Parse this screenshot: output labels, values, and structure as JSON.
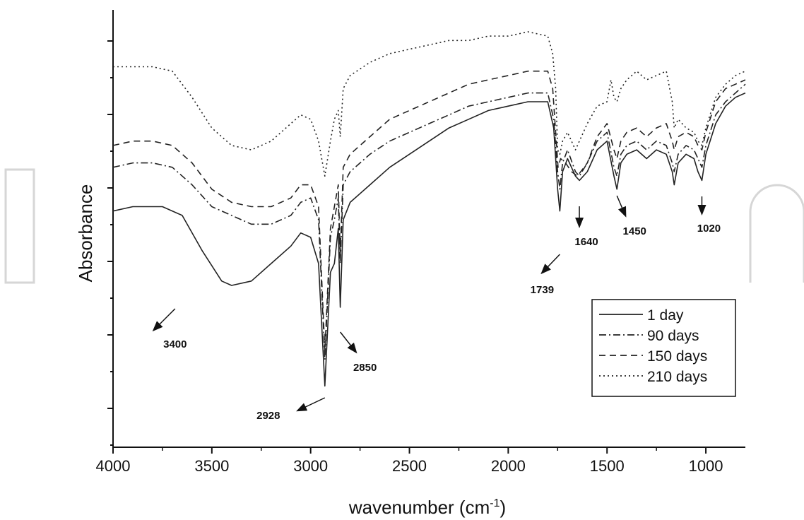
{
  "chart_data": {
    "type": "line",
    "title": "",
    "xlabel": "wavenumber (cm-1)",
    "xlabel_main": "wavenumber (cm",
    "xlabel_sup": "-1",
    "xlabel_close": ")",
    "ylabel": "Absorbance",
    "xlim": [
      4000,
      800
    ],
    "x_reversed": true,
    "ylim": [
      0,
      100
    ],
    "y_tick_labels_shown": false,
    "x_ticks": [
      4000,
      3500,
      3000,
      2500,
      2000,
      1500,
      1000
    ],
    "x_tick_labels": [
      "4000",
      "3500",
      "3000",
      "2500",
      "2000",
      "1500",
      "1000"
    ],
    "grid": false,
    "legend_position": "bottom-right",
    "series": [
      {
        "name": "1 day",
        "dash": "solid",
        "points": [
          [
            4000,
            54
          ],
          [
            3900,
            55
          ],
          [
            3750,
            55
          ],
          [
            3650,
            53
          ],
          [
            3550,
            45
          ],
          [
            3450,
            38
          ],
          [
            3400,
            37
          ],
          [
            3300,
            38
          ],
          [
            3200,
            42
          ],
          [
            3100,
            46
          ],
          [
            3050,
            49
          ],
          [
            3000,
            48
          ],
          [
            2960,
            42
          ],
          [
            2928,
            14
          ],
          [
            2900,
            40
          ],
          [
            2880,
            42
          ],
          [
            2860,
            50
          ],
          [
            2850,
            32
          ],
          [
            2835,
            52
          ],
          [
            2800,
            56
          ],
          [
            2700,
            60
          ],
          [
            2600,
            64
          ],
          [
            2500,
            67
          ],
          [
            2400,
            70
          ],
          [
            2300,
            73
          ],
          [
            2200,
            75
          ],
          [
            2100,
            77
          ],
          [
            2000,
            78
          ],
          [
            1900,
            79
          ],
          [
            1800,
            79
          ],
          [
            1770,
            73
          ],
          [
            1750,
            59
          ],
          [
            1739,
            54
          ],
          [
            1725,
            63
          ],
          [
            1700,
            66
          ],
          [
            1660,
            62
          ],
          [
            1640,
            61
          ],
          [
            1600,
            63
          ],
          [
            1550,
            68
          ],
          [
            1500,
            70
          ],
          [
            1465,
            62
          ],
          [
            1450,
            59
          ],
          [
            1430,
            65
          ],
          [
            1400,
            67
          ],
          [
            1350,
            68
          ],
          [
            1300,
            66
          ],
          [
            1250,
            68
          ],
          [
            1200,
            67
          ],
          [
            1170,
            63
          ],
          [
            1160,
            60
          ],
          [
            1140,
            65
          ],
          [
            1100,
            67
          ],
          [
            1060,
            66
          ],
          [
            1040,
            63
          ],
          [
            1020,
            61
          ],
          [
            1000,
            67
          ],
          [
            950,
            74
          ],
          [
            900,
            78
          ],
          [
            850,
            80
          ],
          [
            800,
            81
          ]
        ]
      },
      {
        "name": "90 days",
        "dash": "dash-dot",
        "points": [
          [
            4000,
            64
          ],
          [
            3900,
            65
          ],
          [
            3800,
            65
          ],
          [
            3700,
            64
          ],
          [
            3600,
            60
          ],
          [
            3500,
            55
          ],
          [
            3400,
            53
          ],
          [
            3300,
            51
          ],
          [
            3200,
            51
          ],
          [
            3100,
            53
          ],
          [
            3050,
            56
          ],
          [
            3000,
            57
          ],
          [
            2960,
            52
          ],
          [
            2928,
            20
          ],
          [
            2900,
            48
          ],
          [
            2880,
            52
          ],
          [
            2860,
            57
          ],
          [
            2850,
            42
          ],
          [
            2835,
            60
          ],
          [
            2800,
            63
          ],
          [
            2700,
            67
          ],
          [
            2600,
            70
          ],
          [
            2500,
            72
          ],
          [
            2400,
            74
          ],
          [
            2300,
            76
          ],
          [
            2200,
            78
          ],
          [
            2100,
            79
          ],
          [
            2000,
            80
          ],
          [
            1900,
            81
          ],
          [
            1800,
            81
          ],
          [
            1770,
            75
          ],
          [
            1750,
            63
          ],
          [
            1739,
            59
          ],
          [
            1725,
            65
          ],
          [
            1700,
            68
          ],
          [
            1660,
            63
          ],
          [
            1640,
            62
          ],
          [
            1600,
            65
          ],
          [
            1550,
            70
          ],
          [
            1500,
            72
          ],
          [
            1465,
            64
          ],
          [
            1450,
            62
          ],
          [
            1430,
            67
          ],
          [
            1400,
            69
          ],
          [
            1350,
            70
          ],
          [
            1300,
            68
          ],
          [
            1250,
            70
          ],
          [
            1200,
            69
          ],
          [
            1170,
            65
          ],
          [
            1160,
            63
          ],
          [
            1140,
            67
          ],
          [
            1100,
            69
          ],
          [
            1060,
            68
          ],
          [
            1040,
            66
          ],
          [
            1020,
            64
          ],
          [
            1000,
            69
          ],
          [
            950,
            76
          ],
          [
            900,
            79
          ],
          [
            850,
            81
          ],
          [
            800,
            83
          ]
        ]
      },
      {
        "name": "150 days",
        "dash": "dashed",
        "points": [
          [
            4000,
            69
          ],
          [
            3900,
            70
          ],
          [
            3800,
            70
          ],
          [
            3700,
            69
          ],
          [
            3600,
            65
          ],
          [
            3500,
            59
          ],
          [
            3400,
            56
          ],
          [
            3300,
            55
          ],
          [
            3200,
            55
          ],
          [
            3100,
            57
          ],
          [
            3050,
            60
          ],
          [
            3000,
            60
          ],
          [
            2960,
            55
          ],
          [
            2928,
            22
          ],
          [
            2900,
            50
          ],
          [
            2880,
            55
          ],
          [
            2860,
            60
          ],
          [
            2850,
            44
          ],
          [
            2835,
            64
          ],
          [
            2800,
            67
          ],
          [
            2700,
            71
          ],
          [
            2600,
            75
          ],
          [
            2500,
            77
          ],
          [
            2400,
            79
          ],
          [
            2300,
            81
          ],
          [
            2200,
            83
          ],
          [
            2100,
            84
          ],
          [
            2000,
            85
          ],
          [
            1900,
            86
          ],
          [
            1800,
            86
          ],
          [
            1775,
            82
          ],
          [
            1760,
            72
          ],
          [
            1748,
            64
          ],
          [
            1735,
            66
          ],
          [
            1710,
            65
          ],
          [
            1680,
            63
          ],
          [
            1650,
            62
          ],
          [
            1600,
            65
          ],
          [
            1550,
            71
          ],
          [
            1500,
            74
          ],
          [
            1465,
            68
          ],
          [
            1450,
            66
          ],
          [
            1430,
            70
          ],
          [
            1400,
            72
          ],
          [
            1350,
            73
          ],
          [
            1300,
            71
          ],
          [
            1250,
            73
          ],
          [
            1200,
            74
          ],
          [
            1170,
            70
          ],
          [
            1160,
            68
          ],
          [
            1140,
            71
          ],
          [
            1100,
            72
          ],
          [
            1060,
            71
          ],
          [
            1040,
            69
          ],
          [
            1020,
            68
          ],
          [
            1000,
            72
          ],
          [
            950,
            79
          ],
          [
            900,
            82
          ],
          [
            850,
            83
          ],
          [
            800,
            84
          ]
        ]
      },
      {
        "name": "210 days",
        "dash": "dotted",
        "points": [
          [
            4000,
            87
          ],
          [
            3900,
            87
          ],
          [
            3800,
            87
          ],
          [
            3700,
            86
          ],
          [
            3600,
            80
          ],
          [
            3500,
            73
          ],
          [
            3400,
            69
          ],
          [
            3300,
            68
          ],
          [
            3200,
            70
          ],
          [
            3100,
            74
          ],
          [
            3050,
            76
          ],
          [
            3000,
            75
          ],
          [
            2960,
            70
          ],
          [
            2928,
            62
          ],
          [
            2900,
            70
          ],
          [
            2880,
            75
          ],
          [
            2860,
            77
          ],
          [
            2850,
            71
          ],
          [
            2835,
            82
          ],
          [
            2800,
            85
          ],
          [
            2700,
            88
          ],
          [
            2600,
            90
          ],
          [
            2500,
            91
          ],
          [
            2400,
            92
          ],
          [
            2300,
            93
          ],
          [
            2200,
            93
          ],
          [
            2100,
            94
          ],
          [
            2000,
            94
          ],
          [
            1900,
            95
          ],
          [
            1800,
            94
          ],
          [
            1775,
            90
          ],
          [
            1760,
            82
          ],
          [
            1750,
            68
          ],
          [
            1739,
            67
          ],
          [
            1725,
            70
          ],
          [
            1700,
            72
          ],
          [
            1680,
            70
          ],
          [
            1660,
            68
          ],
          [
            1640,
            70
          ],
          [
            1600,
            74
          ],
          [
            1550,
            78
          ],
          [
            1500,
            79
          ],
          [
            1480,
            84
          ],
          [
            1465,
            80
          ],
          [
            1450,
            79
          ],
          [
            1430,
            82
          ],
          [
            1400,
            84
          ],
          [
            1350,
            86
          ],
          [
            1300,
            84
          ],
          [
            1250,
            85
          ],
          [
            1200,
            86
          ],
          [
            1170,
            79
          ],
          [
            1160,
            73
          ],
          [
            1140,
            75
          ],
          [
            1100,
            73
          ],
          [
            1060,
            72
          ],
          [
            1040,
            70
          ],
          [
            1020,
            69
          ],
          [
            1000,
            73
          ],
          [
            950,
            80
          ],
          [
            900,
            83
          ],
          [
            850,
            85
          ],
          [
            800,
            86
          ]
        ]
      }
    ],
    "annotations": [
      {
        "label": "3400",
        "x": 3400
      },
      {
        "label": "2928",
        "x": 2928
      },
      {
        "label": "2850",
        "x": 2850
      },
      {
        "label": "1739",
        "x": 1739
      },
      {
        "label": "1640",
        "x": 1640
      },
      {
        "label": "1450",
        "x": 1450
      },
      {
        "label": "1020",
        "x": 1020
      }
    ]
  },
  "colors": {
    "line": "#222222",
    "axis": "#111111",
    "watermark": "#d6d6d6",
    "background": "#ffffff"
  }
}
